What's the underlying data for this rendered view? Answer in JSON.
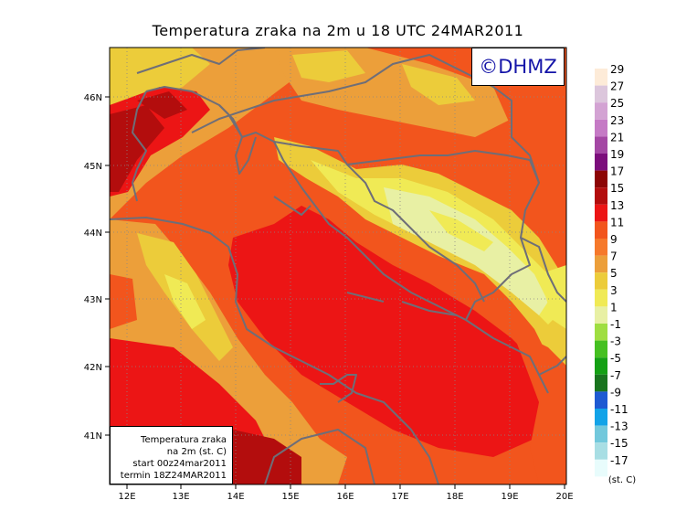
{
  "title": "Temperatura zraka na 2m u 18 UTC 24MAR2011",
  "logo": "©DHMZ",
  "info_box": {
    "line1": "Temperatura zraka",
    "line2": "na 2m (st. C)",
    "line3": "start 00z24mar2011",
    "line4": "termin 18Z24MAR2011"
  },
  "axes": {
    "lon_labels": [
      "12E",
      "13E",
      "14E",
      "15E",
      "16E",
      "17E",
      "18E",
      "19E",
      "20E"
    ],
    "lat_labels": [
      "46N",
      "45N",
      "44N",
      "43N",
      "42N",
      "41N"
    ]
  },
  "colorbar": {
    "unit": "(st. C)",
    "labels": [
      "29",
      "27",
      "25",
      "23",
      "21",
      "19",
      "17",
      "15",
      "13",
      "11",
      "9",
      "7",
      "5",
      "3",
      "1",
      "-1",
      "-3",
      "-5",
      "-7",
      "-9",
      "-11",
      "-13",
      "-15",
      "-17"
    ],
    "colors": [
      "#fdebd8",
      "#dcc6dc",
      "#d3a3d3",
      "#c57ac5",
      "#a447a4",
      "#7c0e7c",
      "#8c0505",
      "#b30d0d",
      "#ec1515",
      "#f2551d",
      "#f6792b",
      "#ec9f3a",
      "#eccc3a",
      "#f0ea55",
      "#e8f0a4",
      "#9fde41",
      "#45c021",
      "#14a014",
      "#19741e",
      "#1e5ad2",
      "#12a3e8",
      "#72c8dc",
      "#a8dee4",
      "#e8fcfc"
    ]
  }
}
